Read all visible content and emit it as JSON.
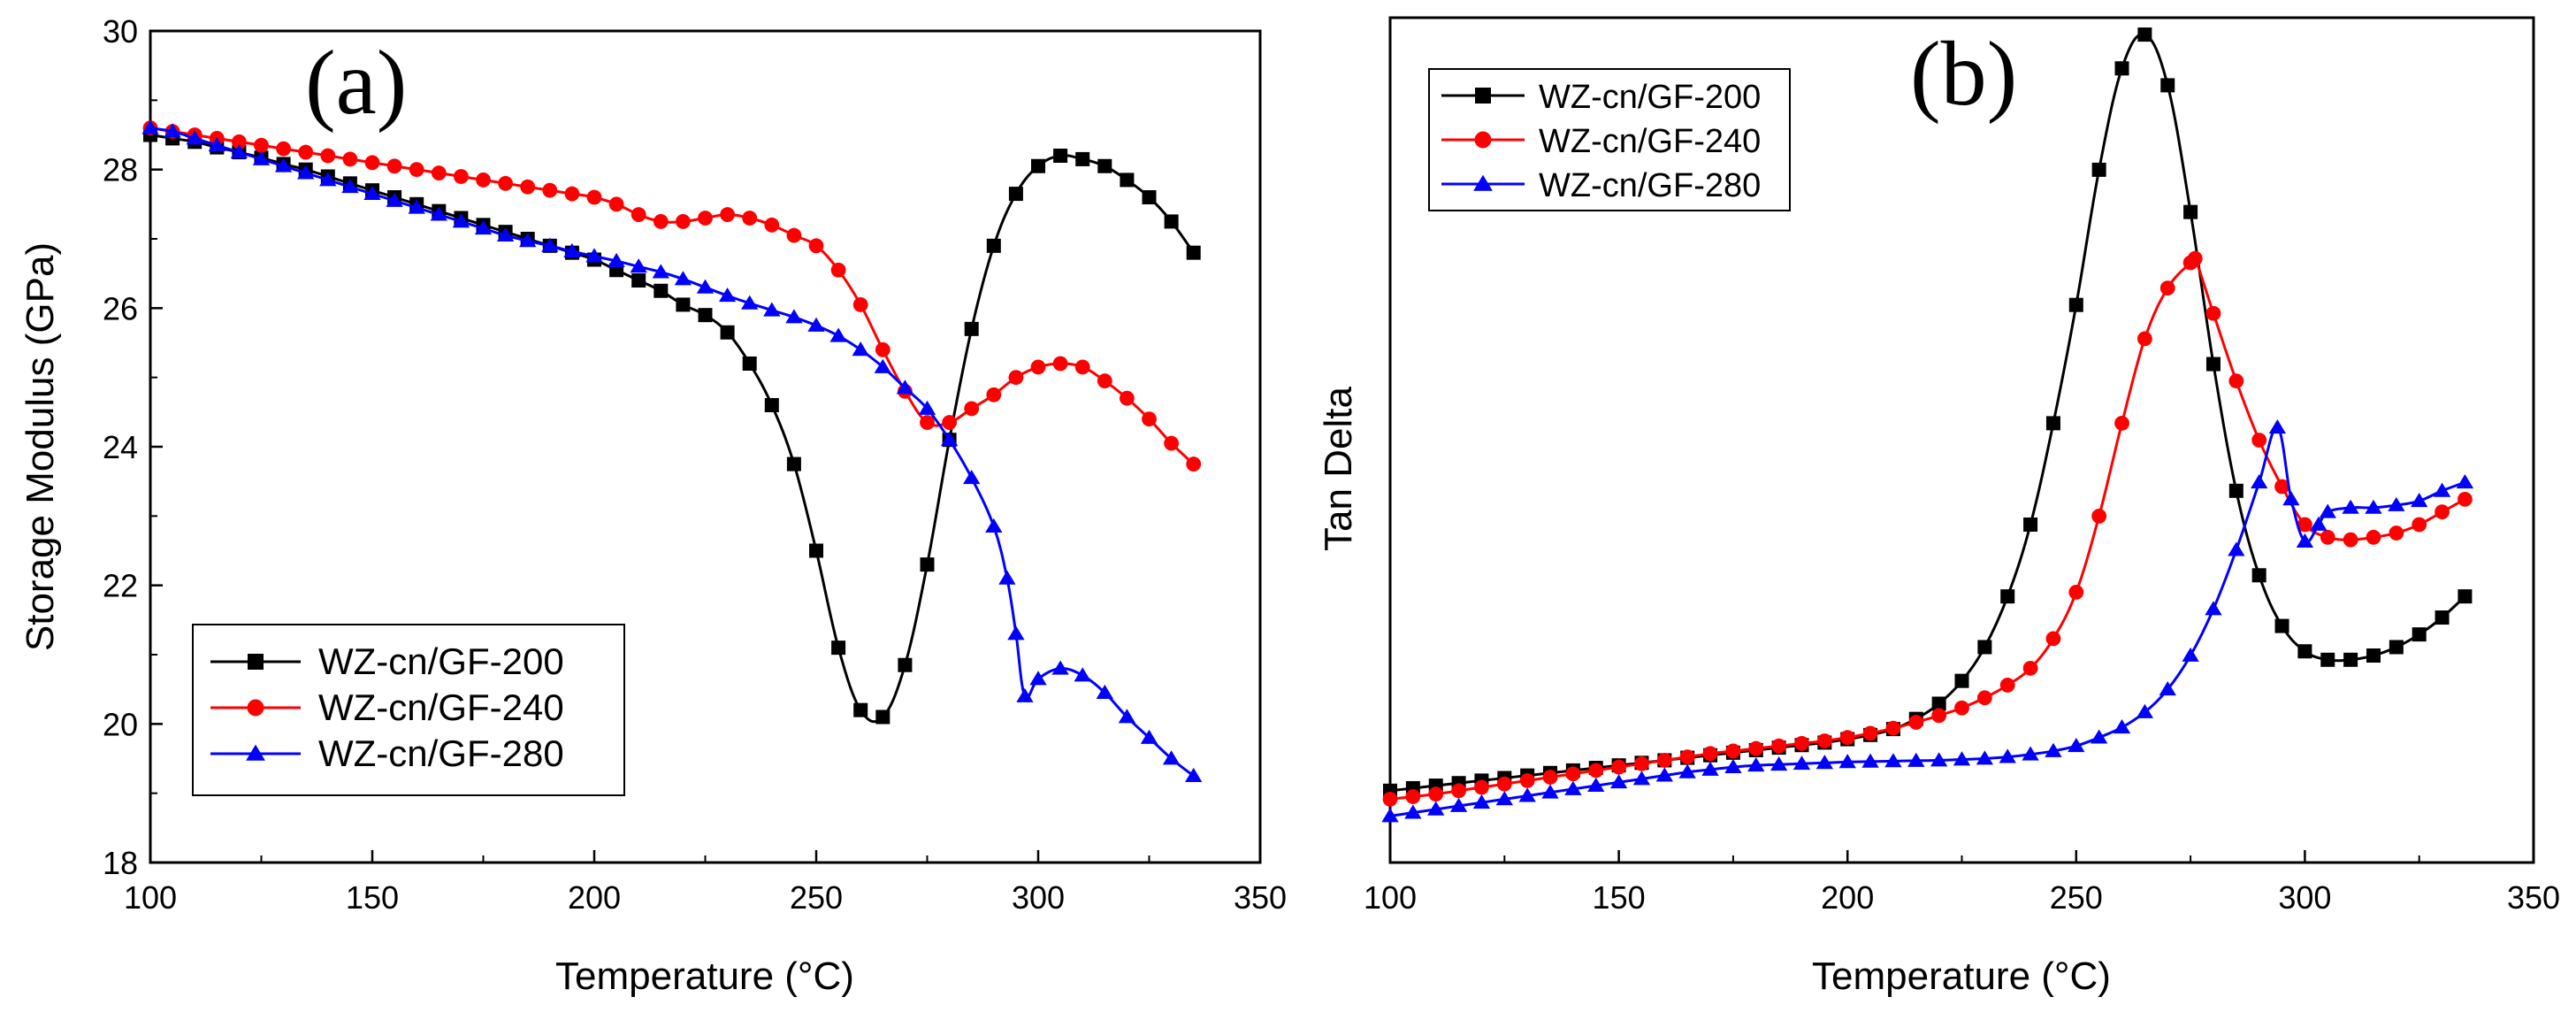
{
  "chart_data": [
    {
      "type": "line",
      "panel_label": "(a)",
      "xlabel": "Temperature (°C)",
      "ylabel": "Storage Modulus (GPa)",
      "xlim": [
        100,
        350
      ],
      "ylim": [
        18,
        30
      ],
      "xticks": [
        100,
        150,
        200,
        250,
        300,
        350
      ],
      "yticks": [
        18,
        20,
        22,
        24,
        26,
        28,
        30
      ],
      "legend_position": "bottom-left",
      "series": [
        {
          "name": "WZ-cn/GF-200",
          "color": "#000000",
          "marker": "square",
          "x": [
            100,
            105,
            110,
            115,
            120,
            125,
            130,
            135,
            140,
            145,
            150,
            155,
            160,
            165,
            170,
            175,
            180,
            185,
            190,
            195,
            200,
            205,
            210,
            215,
            220,
            225,
            230,
            235,
            240,
            245,
            250,
            255,
            260,
            265,
            270,
            275,
            280,
            285,
            290,
            295,
            300,
            305,
            310,
            315,
            320,
            325,
            330,
            335
          ],
          "y": [
            28.5,
            28.45,
            28.4,
            28.32,
            28.25,
            28.17,
            28.08,
            28.0,
            27.9,
            27.8,
            27.7,
            27.6,
            27.5,
            27.4,
            27.3,
            27.2,
            27.1,
            27.0,
            26.9,
            26.8,
            26.7,
            26.55,
            26.4,
            26.25,
            26.05,
            25.9,
            25.65,
            25.2,
            24.6,
            23.75,
            22.5,
            21.1,
            20.2,
            20.1,
            20.85,
            22.3,
            24.1,
            25.7,
            26.9,
            27.65,
            28.05,
            28.2,
            28.15,
            28.05,
            27.85,
            27.6,
            27.25,
            26.8
          ]
        },
        {
          "name": "WZ-cn/GF-240",
          "color": "#ff0000",
          "marker": "circle",
          "x": [
            100,
            105,
            110,
            115,
            120,
            125,
            130,
            135,
            140,
            145,
            150,
            155,
            160,
            165,
            170,
            175,
            180,
            185,
            190,
            195,
            200,
            205,
            210,
            215,
            220,
            225,
            230,
            235,
            240,
            245,
            250,
            255,
            260,
            265,
            270,
            275,
            280,
            285,
            290,
            295,
            300,
            305,
            310,
            315,
            320,
            325,
            330,
            335
          ],
          "y": [
            28.6,
            28.55,
            28.5,
            28.45,
            28.4,
            28.35,
            28.3,
            28.25,
            28.2,
            28.15,
            28.1,
            28.05,
            28.0,
            27.95,
            27.9,
            27.85,
            27.8,
            27.75,
            27.7,
            27.65,
            27.6,
            27.5,
            27.35,
            27.25,
            27.25,
            27.3,
            27.35,
            27.3,
            27.2,
            27.05,
            26.9,
            26.55,
            26.05,
            25.4,
            24.8,
            24.35,
            24.35,
            24.55,
            24.75,
            25.0,
            25.15,
            25.2,
            25.15,
            24.95,
            24.7,
            24.4,
            24.05,
            23.75
          ]
        },
        {
          "name": "WZ-cn/GF-280",
          "color": "#0000ff",
          "marker": "triangle",
          "x": [
            100,
            105,
            110,
            115,
            120,
            125,
            130,
            135,
            140,
            145,
            150,
            155,
            160,
            165,
            170,
            175,
            180,
            185,
            190,
            195,
            200,
            205,
            210,
            215,
            220,
            225,
            230,
            235,
            240,
            245,
            250,
            255,
            260,
            265,
            270,
            275,
            280,
            285,
            290,
            293,
            295,
            297,
            300,
            305,
            310,
            315,
            320,
            325,
            330,
            335
          ],
          "y": [
            28.6,
            28.55,
            28.45,
            28.35,
            28.25,
            28.15,
            28.05,
            27.95,
            27.85,
            27.75,
            27.65,
            27.55,
            27.45,
            27.35,
            27.25,
            27.15,
            27.05,
            26.97,
            26.9,
            26.82,
            26.75,
            26.68,
            26.6,
            26.52,
            26.42,
            26.3,
            26.18,
            26.07,
            25.97,
            25.87,
            25.75,
            25.6,
            25.4,
            25.15,
            24.85,
            24.55,
            24.1,
            23.55,
            22.85,
            22.1,
            21.3,
            20.4,
            20.65,
            20.8,
            20.7,
            20.45,
            20.1,
            19.8,
            19.5,
            19.25
          ]
        }
      ]
    },
    {
      "type": "line",
      "panel_label": "(b)",
      "xlabel": "Temperature (°C)",
      "ylabel": "Tan Delta",
      "xlim": [
        100,
        350
      ],
      "ylim": [
        0,
        100
      ],
      "y_tick_labels_shown": false,
      "xticks": [
        100,
        150,
        200,
        250,
        300,
        350
      ],
      "legend_position": "top-left",
      "series": [
        {
          "name": "WZ-cn/GF-200",
          "color": "#000000",
          "marker": "square",
          "x": [
            100,
            105,
            110,
            115,
            120,
            125,
            130,
            135,
            140,
            145,
            150,
            155,
            160,
            165,
            170,
            175,
            180,
            185,
            190,
            195,
            200,
            205,
            210,
            215,
            220,
            225,
            230,
            235,
            240,
            245,
            250,
            255,
            260,
            265,
            270,
            275,
            280,
            285,
            290,
            295,
            300,
            305,
            310,
            315,
            320,
            325,
            330,
            335
          ],
          "y": [
            8.5,
            8.8,
            9.1,
            9.4,
            9.7,
            10.0,
            10.3,
            10.6,
            10.9,
            11.2,
            11.5,
            11.8,
            12.1,
            12.4,
            12.7,
            13.0,
            13.3,
            13.6,
            13.9,
            14.2,
            14.6,
            15.1,
            15.8,
            17.0,
            18.8,
            21.5,
            25.5,
            31.5,
            40.0,
            52.0,
            66.0,
            82.0,
            94.0,
            98.0,
            92.0,
            77.0,
            59.0,
            44.0,
            34.0,
            28.0,
            25.0,
            24.0,
            24.0,
            24.5,
            25.5,
            27.0,
            29.0,
            31.5
          ]
        },
        {
          "name": "WZ-cn/GF-240",
          "color": "#ff0000",
          "marker": "circle",
          "x": [
            100,
            105,
            110,
            115,
            120,
            125,
            130,
            135,
            140,
            145,
            150,
            155,
            160,
            165,
            170,
            175,
            180,
            185,
            190,
            195,
            200,
            205,
            210,
            215,
            220,
            225,
            230,
            235,
            240,
            245,
            250,
            255,
            260,
            265,
            270,
            275,
            276,
            280,
            285,
            290,
            295,
            300,
            305,
            310,
            315,
            320,
            325,
            330,
            335
          ],
          "y": [
            7.5,
            7.8,
            8.1,
            8.5,
            8.9,
            9.3,
            9.7,
            10.1,
            10.5,
            10.9,
            11.3,
            11.7,
            12.1,
            12.5,
            12.9,
            13.2,
            13.5,
            13.8,
            14.1,
            14.4,
            14.8,
            15.3,
            15.9,
            16.6,
            17.4,
            18.3,
            19.5,
            21.0,
            23.0,
            26.5,
            32.0,
            41.0,
            52.0,
            62.0,
            68.0,
            71.0,
            71.5,
            65.0,
            57.0,
            50.0,
            44.5,
            40.0,
            38.5,
            38.2,
            38.5,
            39.0,
            40.0,
            41.5,
            43.0
          ]
        },
        {
          "name": "WZ-cn/GF-280",
          "color": "#0000ff",
          "marker": "triangle",
          "x": [
            100,
            105,
            110,
            115,
            120,
            125,
            130,
            135,
            140,
            145,
            150,
            155,
            160,
            165,
            170,
            175,
            180,
            185,
            190,
            195,
            200,
            205,
            210,
            215,
            220,
            225,
            230,
            235,
            240,
            245,
            250,
            255,
            260,
            265,
            270,
            275,
            280,
            285,
            290,
            294,
            297,
            300,
            303,
            305,
            310,
            315,
            320,
            325,
            330,
            335
          ],
          "y": [
            5.5,
            5.9,
            6.3,
            6.7,
            7.1,
            7.5,
            7.9,
            8.3,
            8.7,
            9.1,
            9.5,
            9.9,
            10.3,
            10.7,
            11.0,
            11.3,
            11.5,
            11.6,
            11.7,
            11.8,
            11.9,
            11.95,
            12.0,
            12.05,
            12.1,
            12.2,
            12.3,
            12.5,
            12.8,
            13.2,
            13.8,
            14.8,
            16.0,
            17.8,
            20.5,
            24.5,
            30.0,
            37.0,
            45.0,
            51.5,
            43.0,
            38.0,
            40.0,
            41.5,
            42.0,
            42.0,
            42.3,
            42.8,
            44.0,
            45.0
          ]
        }
      ]
    }
  ]
}
